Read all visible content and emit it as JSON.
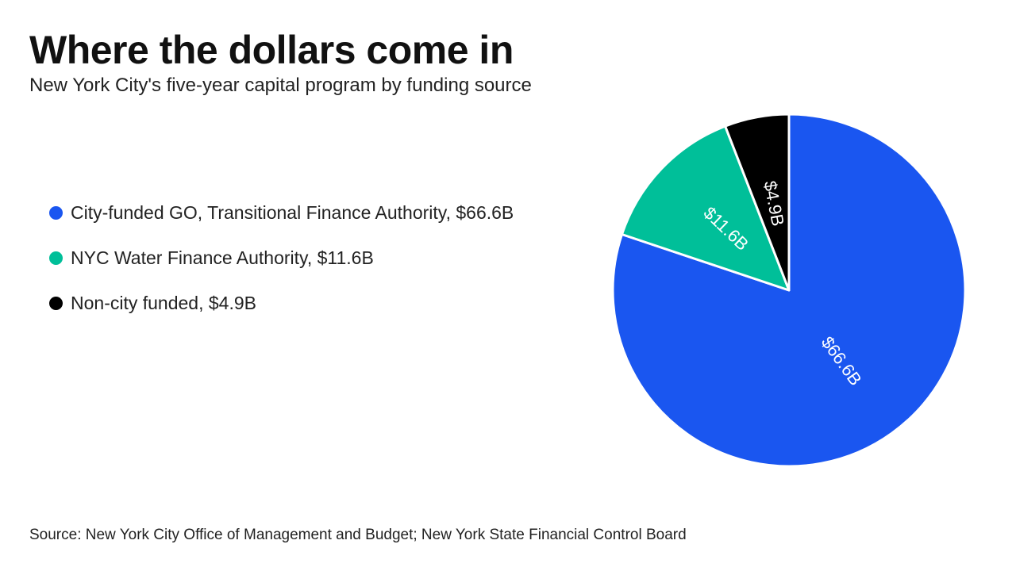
{
  "chart_data": {
    "type": "pie",
    "title": "Where the dollars come in",
    "subtitle": "New York City's five-year capital program by funding source",
    "source": "Source: New York City Office of Management and Budget; New York State Financial Control Board",
    "legend_position": "left",
    "slices": [
      {
        "name": "City-funded GO, Transitional Finance Authority",
        "value": 66.6,
        "label": "$66.6B",
        "legend": "City-funded GO, Transitional Finance Authority, $66.6B",
        "color": "#1a56f0"
      },
      {
        "name": "NYC Water Finance Authority",
        "value": 11.6,
        "label": "$11.6B",
        "legend": "NYC Water Finance Authority, $11.6B",
        "color": "#00bf99"
      },
      {
        "name": "Non-city funded",
        "value": 4.9,
        "label": "$4.9B",
        "legend": "Non-city funded, $4.9B",
        "color": "#000000"
      }
    ]
  }
}
